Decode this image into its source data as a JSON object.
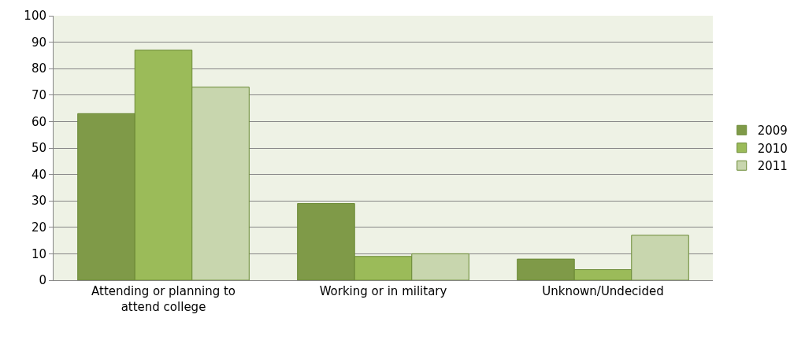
{
  "chart_data": {
    "type": "bar",
    "categories": [
      "Attending or planning to attend college",
      "Working or in military",
      "Unknown/Undecided"
    ],
    "series": [
      {
        "name": "2009",
        "color": "#7f9a48",
        "values": [
          63,
          29,
          8
        ]
      },
      {
        "name": "2010",
        "color": "#9bbb59",
        "values": [
          87,
          9,
          4
        ]
      },
      {
        "name": "2011",
        "color": "#c8d6ae",
        "values": [
          73,
          10,
          17
        ]
      }
    ],
    "ylim": [
      0,
      100
    ],
    "yticks": [
      0,
      10,
      20,
      30,
      40,
      50,
      60,
      70,
      80,
      90,
      100
    ],
    "grid": "y",
    "legend": "right"
  }
}
